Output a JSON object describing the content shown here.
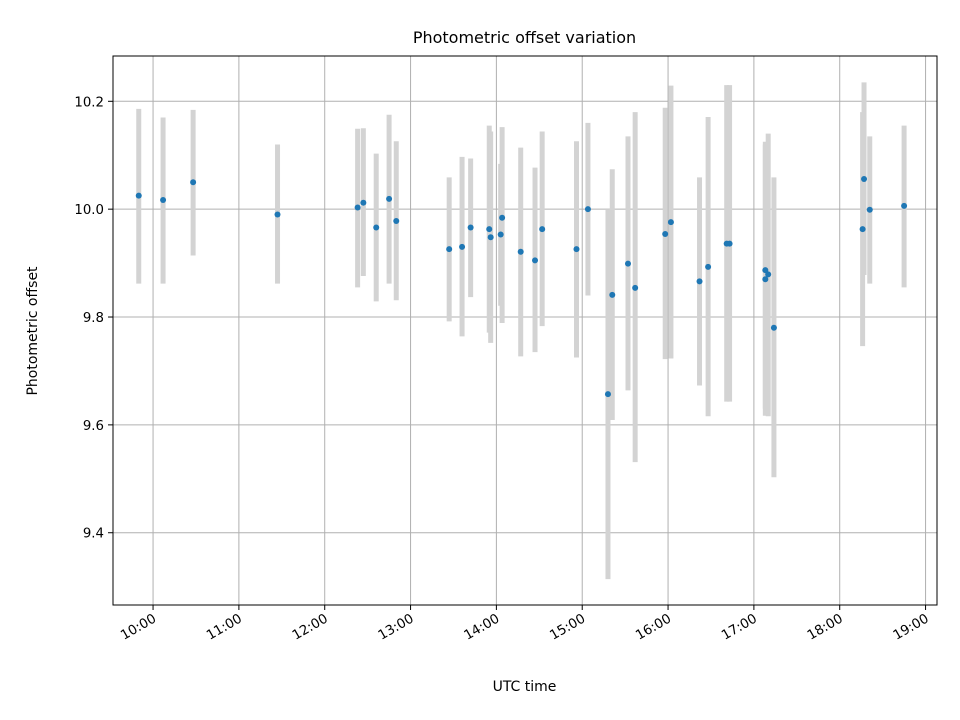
{
  "chart_data": {
    "type": "scatter",
    "title": "Photometric offset variation",
    "xlabel": "UTC time",
    "ylabel": "Photometric offset",
    "xlim": [
      "09:32",
      "19:08"
    ],
    "ylim": [
      9.266,
      10.284
    ],
    "x_ticks": [
      "10:00",
      "11:00",
      "12:00",
      "13:00",
      "14:00",
      "15:00",
      "16:00",
      "17:00",
      "18:00",
      "19:00"
    ],
    "y_ticks": [
      9.4,
      9.6,
      9.8,
      10.0,
      10.2
    ],
    "y_tick_labels": [
      "9.4",
      "9.6",
      "9.8",
      "10.0",
      "10.2"
    ],
    "grid": true,
    "colors": {
      "points": "#1f77b4",
      "error_bars": "#d3d3d3",
      "grid": "#b0b0b0"
    },
    "points": [
      {
        "x": "09:50",
        "y": 10.025,
        "err_low": 9.862,
        "err_high": 10.186
      },
      {
        "x": "10:07",
        "y": 10.017,
        "err_low": 9.862,
        "err_high": 10.17
      },
      {
        "x": "10:28",
        "y": 10.05,
        "err_low": 9.914,
        "err_high": 10.184
      },
      {
        "x": "11:27",
        "y": 9.99,
        "err_low": 9.862,
        "err_high": 10.12
      },
      {
        "x": "12:23",
        "y": 10.003,
        "err_low": 9.855,
        "err_high": 10.149
      },
      {
        "x": "12:27",
        "y": 10.012,
        "err_low": 9.876,
        "err_high": 10.15
      },
      {
        "x": "12:36",
        "y": 9.966,
        "err_low": 9.829,
        "err_high": 10.103
      },
      {
        "x": "12:45",
        "y": 10.019,
        "err_low": 9.862,
        "err_high": 10.175
      },
      {
        "x": "12:50",
        "y": 9.978,
        "err_low": 9.831,
        "err_high": 10.126
      },
      {
        "x": "13:27",
        "y": 9.926,
        "err_low": 9.792,
        "err_high": 10.059
      },
      {
        "x": "13:36",
        "y": 9.93,
        "err_low": 9.764,
        "err_high": 10.097
      },
      {
        "x": "13:42",
        "y": 9.966,
        "err_low": 9.837,
        "err_high": 10.094
      },
      {
        "x": "13:55",
        "y": 9.963,
        "err_low": 9.771,
        "err_high": 10.155
      },
      {
        "x": "13:56",
        "y": 9.948,
        "err_low": 9.752,
        "err_high": 10.144
      },
      {
        "x": "14:03",
        "y": 9.953,
        "err_low": 9.821,
        "err_high": 10.084
      },
      {
        "x": "14:04",
        "y": 9.984,
        "err_low": 9.789,
        "err_high": 10.152
      },
      {
        "x": "14:17",
        "y": 9.921,
        "err_low": 9.727,
        "err_high": 10.114
      },
      {
        "x": "14:27",
        "y": 9.905,
        "err_low": 9.735,
        "err_high": 10.077
      },
      {
        "x": "14:32",
        "y": 9.963,
        "err_low": 9.783,
        "err_high": 10.144
      },
      {
        "x": "14:56",
        "y": 9.926,
        "err_low": 9.725,
        "err_high": 10.126
      },
      {
        "x": "15:04",
        "y": 10.0,
        "err_low": 9.84,
        "err_high": 10.16
      },
      {
        "x": "15:18",
        "y": 9.657,
        "err_low": 9.314,
        "err_high": 10.0
      },
      {
        "x": "15:21",
        "y": 9.841,
        "err_low": 9.609,
        "err_high": 10.074
      },
      {
        "x": "15:32",
        "y": 9.899,
        "err_low": 9.664,
        "err_high": 10.135
      },
      {
        "x": "15:37",
        "y": 9.854,
        "err_low": 9.531,
        "err_high": 10.18
      },
      {
        "x": "15:58",
        "y": 9.954,
        "err_low": 9.722,
        "err_high": 10.188
      },
      {
        "x": "16:02",
        "y": 9.976,
        "err_low": 9.723,
        "err_high": 10.229
      },
      {
        "x": "16:22",
        "y": 9.866,
        "err_low": 9.673,
        "err_high": 10.059
      },
      {
        "x": "16:28",
        "y": 9.893,
        "err_low": 9.616,
        "err_high": 10.171
      },
      {
        "x": "16:41",
        "y": 9.936,
        "err_low": 9.643,
        "err_high": 10.23
      },
      {
        "x": "16:43",
        "y": 9.936,
        "err_low": 9.643,
        "err_high": 10.23
      },
      {
        "x": "17:08",
        "y": 9.87,
        "err_low": 9.617,
        "err_high": 10.12
      },
      {
        "x": "17:08",
        "y": 9.887,
        "err_low": 9.63,
        "err_high": 10.125
      },
      {
        "x": "17:10",
        "y": 9.879,
        "err_low": 9.616,
        "err_high": 10.14
      },
      {
        "x": "17:14",
        "y": 9.78,
        "err_low": 9.503,
        "err_high": 10.059
      },
      {
        "x": "18:16",
        "y": 9.963,
        "err_low": 9.746,
        "err_high": 10.18
      },
      {
        "x": "18:17",
        "y": 10.056,
        "err_low": 9.878,
        "err_high": 10.235
      },
      {
        "x": "18:21",
        "y": 9.999,
        "err_low": 9.862,
        "err_high": 10.135
      },
      {
        "x": "18:45",
        "y": 10.006,
        "err_low": 9.855,
        "err_high": 10.155
      }
    ]
  }
}
